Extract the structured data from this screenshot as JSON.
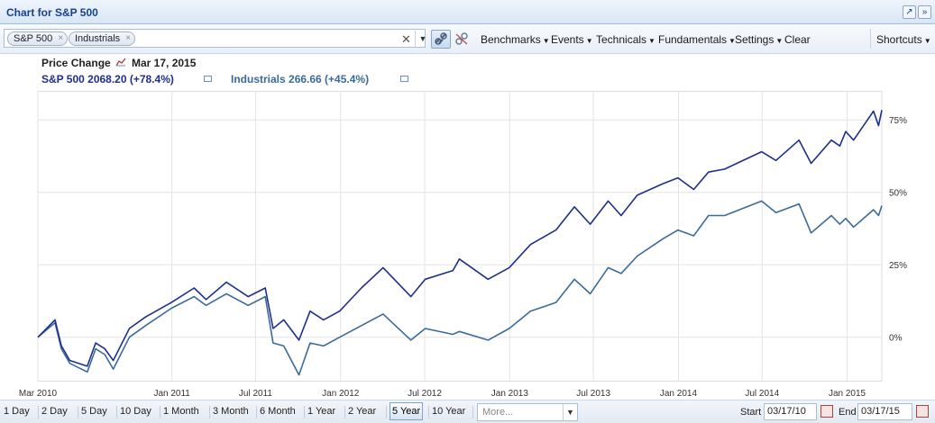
{
  "window": {
    "title": "Chart for S&P 500"
  },
  "symbols": [
    {
      "label": "S&P 500"
    },
    {
      "label": "Industrials"
    }
  ],
  "toolbar": {
    "menus": [
      "Benchmarks",
      "Events",
      "Technicals",
      "Fundamentals",
      "Settings"
    ],
    "clear_label": "Clear",
    "shortcuts_label": "Shortcuts"
  },
  "legend": {
    "label": "Price Change",
    "date": "Mar 17, 2015",
    "series": [
      {
        "text": "S&P 500 2068.20 (+78.4%)",
        "color": "#1f2f8f"
      },
      {
        "text": "Industrials 266.66 (+45.4%)",
        "color": "#3a6b9a"
      }
    ]
  },
  "ranges": {
    "items": [
      "1 Day",
      "2 Day",
      "5 Day",
      "10 Day",
      "1 Month",
      "3 Month",
      "6 Month",
      "1 Year",
      "2 Year",
      "5 Year",
      "10 Year"
    ],
    "selected": "5 Year",
    "more_placeholder": "More...",
    "start_label": "Start",
    "start_value": "03/17/10",
    "end_label": "End",
    "end_value": "03/17/15"
  },
  "chart_data": {
    "type": "line",
    "x_ticks": [
      "Mar 2010",
      "Jan 2011",
      "Jul 2011",
      "Jan 2012",
      "Jul 2012",
      "Jan 2013",
      "Jul 2013",
      "Jan 2014",
      "Jul 2014",
      "Jan 2015"
    ],
    "y_ticks": [
      "75%",
      "50%",
      "25%",
      "0%"
    ],
    "y_tick_values": [
      75,
      50,
      25,
      0
    ],
    "ylim": [
      -15,
      85
    ],
    "xlim": [
      "2010-03-17",
      "2015-03-17"
    ],
    "series": [
      {
        "name": "S&P 500",
        "color": "#1f2f8f",
        "x": [
          "2010-03-17",
          "2010-04-23",
          "2010-05-07",
          "2010-05-25",
          "2010-07-02",
          "2010-07-20",
          "2010-08-09",
          "2010-08-27",
          "2010-10-01",
          "2010-11-05",
          "2010-12-31",
          "2011-02-18",
          "2011-03-16",
          "2011-04-29",
          "2011-06-15",
          "2011-07-22",
          "2011-08-08",
          "2011-08-31",
          "2011-10-03",
          "2011-10-27",
          "2011-11-25",
          "2011-12-30",
          "2012-02-15",
          "2012-04-02",
          "2012-06-01",
          "2012-07-02",
          "2012-08-31",
          "2012-09-14",
          "2012-11-15",
          "2012-12-31",
          "2013-02-15",
          "2013-04-11",
          "2013-05-21",
          "2013-06-24",
          "2013-08-02",
          "2013-08-30",
          "2013-10-04",
          "2013-11-29",
          "2013-12-31",
          "2014-02-03",
          "2014-03-07",
          "2014-04-11",
          "2014-06-30",
          "2014-07-31",
          "2014-09-19",
          "2014-10-15",
          "2014-11-28",
          "2014-12-16",
          "2014-12-29",
          "2015-01-15",
          "2015-02-27",
          "2015-03-10",
          "2015-03-17"
        ],
        "values": [
          0,
          6,
          -3,
          -8,
          -10,
          -2,
          -4,
          -8,
          3,
          7,
          12,
          17,
          13,
          19,
          14,
          17,
          3,
          6,
          -1,
          9,
          6,
          9,
          17,
          24,
          14,
          20,
          23,
          27,
          20,
          24,
          32,
          37,
          45,
          39,
          47,
          42,
          49,
          53,
          55,
          51,
          57,
          58,
          64,
          61,
          68,
          60,
          68,
          66,
          71,
          68,
          78,
          73,
          78.4
        ]
      },
      {
        "name": "Industrials",
        "color": "#3a6b9a",
        "x": [
          "2010-03-17",
          "2010-04-23",
          "2010-05-07",
          "2010-05-25",
          "2010-07-02",
          "2010-07-20",
          "2010-08-09",
          "2010-08-27",
          "2010-10-01",
          "2010-11-05",
          "2010-12-31",
          "2011-02-18",
          "2011-03-16",
          "2011-04-29",
          "2011-06-15",
          "2011-07-22",
          "2011-08-08",
          "2011-08-31",
          "2011-10-03",
          "2011-10-27",
          "2011-11-25",
          "2011-12-30",
          "2012-02-15",
          "2012-04-02",
          "2012-06-01",
          "2012-07-02",
          "2012-08-31",
          "2012-09-14",
          "2012-11-15",
          "2012-12-31",
          "2013-02-15",
          "2013-04-11",
          "2013-05-21",
          "2013-06-24",
          "2013-08-02",
          "2013-08-30",
          "2013-10-04",
          "2013-11-29",
          "2013-12-31",
          "2014-02-03",
          "2014-03-07",
          "2014-04-11",
          "2014-06-30",
          "2014-07-31",
          "2014-09-19",
          "2014-10-15",
          "2014-11-28",
          "2014-12-16",
          "2014-12-29",
          "2015-01-15",
          "2015-02-27",
          "2015-03-10",
          "2015-03-17"
        ],
        "values": [
          0,
          5,
          -4,
          -9,
          -12,
          -4,
          -6,
          -11,
          0,
          4,
          10,
          14,
          11,
          15,
          11,
          14,
          -2,
          -3,
          -13,
          -2,
          -3,
          0,
          4,
          8,
          -1,
          3,
          1,
          2,
          -1,
          3,
          9,
          12,
          20,
          15,
          24,
          22,
          28,
          34,
          37,
          35,
          42,
          42,
          47,
          43,
          46,
          36,
          42,
          39,
          41,
          38,
          44,
          42,
          45.4
        ]
      }
    ],
    "grid": true
  }
}
